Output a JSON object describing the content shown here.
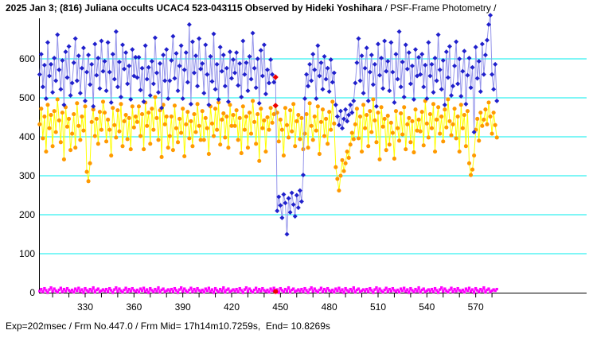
{
  "window": {
    "title_bold": "2025 Jan 3; (816) Juliana occults UCAC4 523-043115 Observed by Hideki Yoshihara",
    "title_regular": " / PSF-Frame Photometry /",
    "footer": "Exp=202msec / Frm No.447.0 / Frm Mid= 17h14m10.7259s,  End= 10.8269s"
  },
  "colors": {
    "background": "#ffffff",
    "grid": "#00eeee",
    "axis": "#000000",
    "text": "#000000",
    "blue_marker": "#2020cc",
    "blue_line": "#9595ea",
    "orange_marker": "#ff9900",
    "orange_line": "#ffff00",
    "magenta": "#ff00ff",
    "red_marker": "#ee0000"
  },
  "chart_data": {
    "type": "scatter",
    "title": "2025 Jan 3; (816) Juliana occults UCAC4 523-043115 Observed by Hideki Yoshihara / PSF-Frame Photometry /",
    "xlabel": "",
    "ylabel": "",
    "x_axis": {
      "label_ticks": [
        330,
        360,
        390,
        420,
        450,
        480,
        510,
        540,
        570
      ],
      "minor_tick_start": 310,
      "minor_tick_end": 580,
      "minor_tick_step": 10,
      "x_min": 301.6,
      "x_max": 638
    },
    "y_axis": {
      "ticks": [
        0,
        100,
        200,
        300,
        400,
        500,
        600
      ],
      "y_min": 0,
      "y_max": 725,
      "grid": true
    },
    "legend": "none",
    "frame_start": 302,
    "frame_end": 583,
    "marked_frame": 447,
    "occultation": {
      "drop_start_frame": 448,
      "recovery_frame": 465,
      "dip_level_approx": 230,
      "baseline_level_approx": 560
    },
    "series": [
      {
        "name": "blue-target-intensity",
        "marker": "diamond",
        "marker_color": "#2020cc",
        "line_color": "#9595ea",
        "values": [
          560,
          612,
          528,
          584,
          498,
          642,
          556,
          586,
          514,
          602,
          544,
          662,
          572,
          522,
          596,
          482,
          618,
          552,
          632,
          506,
          538,
          590,
          652,
          544,
          608,
          512,
          576,
          628,
          492,
          566,
          610,
          534,
          586,
          478,
          638,
          558,
          602,
          524,
          646,
          568,
          594,
          518,
          642,
          566,
          488,
          612,
          548,
          670,
          528,
          592,
          502,
          636,
          574,
          616,
          536,
          582,
          496,
          624,
          556,
          604,
          552,
          604,
          520,
          576,
          490,
          634,
          548,
          578,
          506,
          594,
          536,
          654,
          564,
          514,
          588,
          474,
          610,
          544,
          624,
          498,
          544,
          596,
          658,
          550,
          614,
          518,
          582,
          634,
          498,
          572,
          616,
          540,
          688,
          484,
          644,
          564,
          608,
          530,
          652,
          574,
          588,
          512,
          636,
          560,
          482,
          606,
          542,
          664,
          522,
          586,
          496,
          630,
          568,
          610,
          530,
          576,
          490,
          618,
          550,
          598,
          564,
          616,
          532,
          588,
          502,
          646,
          560,
          590,
          518,
          606,
          548,
          666,
          576,
          526,
          600,
          486,
          622,
          556,
          636,
          510,
          572,
          538,
          598,
          560,
          540,
          553,
          210,
          246,
          224,
          192,
          252,
          230,
          150,
          242,
          206,
          256,
          226,
          196,
          250,
          218,
          262,
          234,
          302,
          498,
          560,
          530,
          586,
          544,
          612,
          572,
          498,
          634,
          556,
          590,
          522,
          606,
          548,
          576,
          516,
          598,
          540,
          564,
          482,
          452,
          430,
          466,
          422,
          446,
          470,
          440,
          456,
          482,
          462,
          492,
          538,
          590,
          652,
          544,
          608,
          512,
          576,
          628,
          492,
          566,
          610,
          534,
          586,
          478,
          638,
          558,
          602,
          524,
          646,
          568,
          594,
          518,
          642,
          566,
          488,
          612,
          548,
          670,
          528,
          592,
          502,
          636,
          574,
          616,
          536,
          582,
          496,
          624,
          556,
          604,
          560,
          612,
          528,
          584,
          498,
          642,
          556,
          586,
          514,
          602,
          544,
          662,
          572,
          522,
          596,
          482,
          618,
          552,
          632,
          506,
          530,
          582,
          644,
          536,
          600,
          504,
          568,
          620,
          484,
          558,
          602,
          526,
          578,
          412,
          630,
          550,
          594,
          516,
          638,
          560,
          610,
          648,
          688,
          712,
          560,
          522,
          586,
          492
        ]
      },
      {
        "name": "orange-comparison-intensity",
        "marker": "circle",
        "marker_color": "#ff9900",
        "line_color": "#ffff00",
        "values": [
          432,
          472,
          396,
          452,
          362,
          482,
          422,
          456,
          376,
          466,
          412,
          496,
          442,
          386,
          462,
          342,
          476,
          426,
          446,
          366,
          408,
          458,
          372,
          486,
          428,
          392,
          452,
          416,
          478,
          310,
          286,
          332,
          438,
          470,
          402,
          446,
          382,
          464,
          418,
          490,
          462,
          388,
          444,
          418,
          352,
          474,
          430,
          398,
          468,
          414,
          484,
          376,
          440,
          456,
          394,
          448,
          368,
          478,
          424,
          452,
          438,
          478,
          402,
          458,
          368,
          488,
          428,
          462,
          382,
          472,
          418,
          502,
          448,
          392,
          468,
          348,
          482,
          432,
          452,
          372,
          402,
          452,
          366,
          480,
          422,
          386,
          446,
          410,
          472,
          350,
          432,
          464,
          396,
          440,
          376,
          458,
          412,
          484,
          428,
          392,
          466,
          392,
          448,
          422,
          356,
          478,
          434,
          402,
          472,
          418,
          488,
          380,
          444,
          460,
          398,
          452,
          372,
          482,
          428,
          456,
          428,
          468,
          392,
          448,
          358,
          478,
          418,
          452,
          372,
          462,
          408,
          492,
          438,
          382,
          458,
          338,
          472,
          422,
          442,
          362,
          450,
          418,
          474,
          436,
          458,
          480,
          462,
          388,
          444,
          418,
          352,
          474,
          430,
          398,
          468,
          414,
          484,
          376,
          440,
          456,
          394,
          448,
          368,
          408,
          458,
          372,
          486,
          428,
          392,
          452,
          416,
          478,
          356,
          438,
          470,
          402,
          446,
          382,
          464,
          418,
          490,
          434,
          322,
          292,
          262,
          300,
          340,
          312,
          332,
          362,
          346,
          380,
          410,
          394,
          432,
          472,
          396,
          452,
          362,
          482,
          422,
          456,
          376,
          466,
          412,
          496,
          442,
          386,
          462,
          342,
          476,
          426,
          446,
          366,
          454,
          380,
          436,
          410,
          344,
          466,
          422,
          390,
          460,
          406,
          476,
          368,
          432,
          448,
          386,
          440,
          360,
          470,
          416,
          444,
          414,
          464,
          378,
          492,
          434,
          398,
          458,
          422,
          484,
          362,
          444,
          476,
          408,
          452,
          388,
          470,
          424,
          496,
          440,
          404,
          432,
          472,
          396,
          452,
          362,
          482,
          422,
          456,
          376,
          466,
          332,
          302,
          316,
          352,
          418,
          446,
          390,
          462,
          428,
          444,
          470,
          432,
          488,
          452,
          408,
          462,
          430,
          398
        ]
      },
      {
        "name": "magenta-background-level",
        "marker": "square",
        "marker_color": "#ff00ff",
        "line_color": "#ff00ff",
        "values": [
          4,
          9,
          2,
          11,
          6,
          0,
          8,
          13,
          3,
          10,
          5,
          1,
          7,
          12,
          2,
          9,
          4,
          11,
          6,
          3,
          7,
          1,
          10,
          5,
          12,
          3,
          8,
          0,
          11,
          6,
          2,
          9,
          4,
          13,
          1,
          7,
          10,
          2,
          5,
          8,
          4,
          9,
          2,
          11,
          6,
          0,
          8,
          13,
          3,
          10,
          5,
          1,
          7,
          12,
          2,
          9,
          4,
          11,
          6,
          3,
          7,
          1,
          10,
          5,
          12,
          3,
          8,
          0,
          11,
          6,
          2,
          9,
          4,
          13,
          1,
          7,
          10,
          2,
          5,
          8,
          4,
          9,
          2,
          11,
          6,
          0,
          8,
          13,
          3,
          10,
          5,
          1,
          7,
          12,
          2,
          9,
          4,
          11,
          6,
          3,
          7,
          1,
          10,
          5,
          12,
          3,
          8,
          0,
          11,
          6,
          2,
          9,
          4,
          13,
          1,
          7,
          10,
          2,
          5,
          8,
          4,
          9,
          2,
          11,
          6,
          0,
          8,
          13,
          3,
          10,
          5,
          1,
          7,
          12,
          2,
          9,
          4,
          11,
          6,
          3,
          7,
          1,
          10,
          5,
          12,
          3,
          8,
          0,
          11,
          6,
          2,
          9,
          4,
          13,
          1,
          7,
          10,
          2,
          5,
          8,
          4,
          9,
          2,
          11,
          6,
          0,
          8,
          13,
          3,
          10,
          5,
          1,
          7,
          12,
          2,
          9,
          4,
          11,
          6,
          3,
          7,
          1,
          10,
          5,
          12,
          3,
          8,
          0,
          11,
          6,
          2,
          9,
          4,
          13,
          1,
          7,
          10,
          2,
          5,
          8,
          4,
          9,
          2,
          11,
          6,
          0,
          8,
          13,
          3,
          10,
          5,
          1,
          7,
          12,
          2,
          9,
          4,
          11,
          6,
          3,
          7,
          1,
          10,
          5,
          12,
          3,
          8,
          0,
          11,
          6,
          2,
          9,
          4,
          13,
          1,
          7,
          10,
          2,
          5,
          8,
          4,
          9,
          2,
          11,
          6,
          0,
          8,
          13,
          3,
          10,
          5,
          1,
          7,
          12,
          2,
          9,
          4,
          11,
          6,
          3,
          7,
          1,
          10,
          5,
          12,
          3,
          8,
          0,
          11,
          6,
          2,
          9,
          4,
          13,
          1,
          7,
          10,
          2,
          5,
          8,
          5,
          9
        ]
      }
    ]
  }
}
